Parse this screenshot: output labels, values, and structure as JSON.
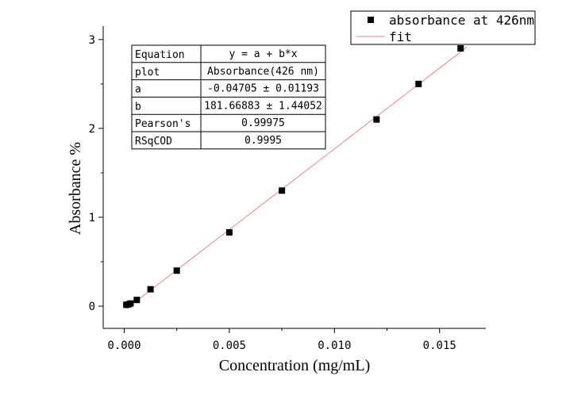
{
  "chart_data": {
    "type": "scatter",
    "xlabel": "Concentration (mg/mL)",
    "ylabel": "Absorbance %",
    "xlim": [
      -0.001,
      0.0172
    ],
    "ylim": [
      -0.25,
      3.15
    ],
    "x_ticks": [
      {
        "value": 0.0,
        "label": "0.000"
      },
      {
        "value": 0.005,
        "label": "0.005"
      },
      {
        "value": 0.01,
        "label": "0.010"
      },
      {
        "value": 0.015,
        "label": "0.015"
      }
    ],
    "y_ticks": [
      {
        "value": 0,
        "label": "0"
      },
      {
        "value": 1,
        "label": "1"
      },
      {
        "value": 2,
        "label": "2"
      },
      {
        "value": 3,
        "label": "3"
      }
    ],
    "series": [
      {
        "name": "absorbance at 426nm",
        "color": "#000000",
        "marker": "square",
        "x": [
          0.0001,
          0.0002,
          0.0003,
          0.0006,
          0.00125,
          0.0025,
          0.005,
          0.0075,
          0.012,
          0.014,
          0.016
        ],
        "y": [
          0.015,
          0.02,
          0.03,
          0.07,
          0.19,
          0.4,
          0.83,
          1.3,
          2.1,
          2.5,
          2.9
        ]
      }
    ],
    "fit": {
      "name": "fit",
      "color": "#f08080",
      "intercept": -0.04705,
      "slope": 181.66883,
      "x_range": [
        0.0001,
        0.0163
      ]
    },
    "legend": {
      "position": "top-right",
      "entries": [
        {
          "label": "absorbance at 426nm",
          "type": "marker"
        },
        {
          "label": "fit",
          "type": "line"
        }
      ]
    },
    "stats_table": {
      "rows": [
        {
          "key": "Equation",
          "value": "y = a + b*x"
        },
        {
          "key": "plot",
          "value": "Absorbance(426 nm)"
        },
        {
          "key": "a",
          "value": "-0.04705 ± 0.01193"
        },
        {
          "key": "b",
          "value": "181.66883 ± 1.44052"
        },
        {
          "key": "Pearson's",
          "value": "0.99975"
        },
        {
          "key": "RSqCOD",
          "value": "0.9995"
        }
      ]
    },
    "grid": false
  }
}
